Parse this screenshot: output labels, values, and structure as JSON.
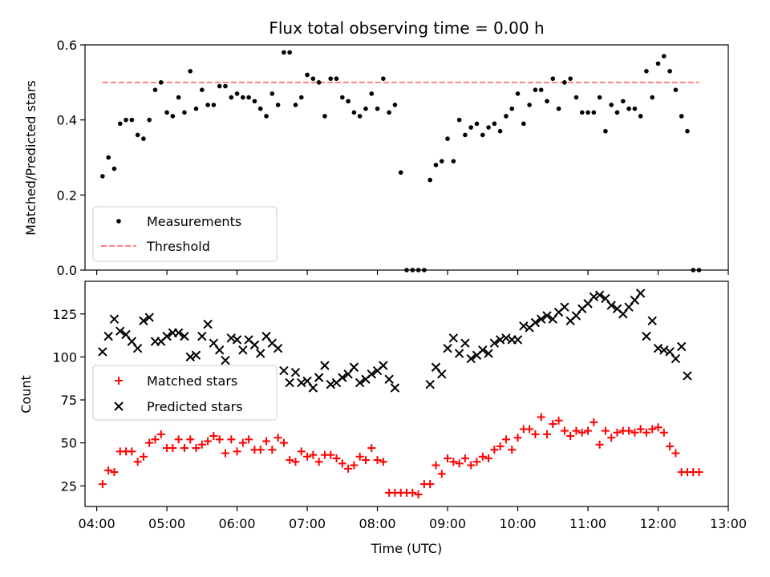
{
  "chart_data": [
    {
      "panel": "top",
      "type": "scatter",
      "title": "Flux total observing time = 0.00 h",
      "ylabel": "Matched/Predicted stars",
      "ylim": [
        0,
        0.6
      ],
      "yticks": [
        0,
        0.2,
        0.4,
        0.6
      ],
      "ytick_labels": [
        "0.0",
        "0.2",
        "0.4",
        "0.6"
      ],
      "legend_position": "lower-left",
      "series": [
        {
          "name": "Measurements",
          "color": "#000000",
          "marker": "dot",
          "x": [
            "04:05",
            "04:10",
            "04:15",
            "04:20",
            "04:25",
            "04:30",
            "04:35",
            "04:40",
            "04:45",
            "04:50",
            "04:55",
            "05:00",
            "05:05",
            "05:10",
            "05:15",
            "05:20",
            "05:25",
            "05:30",
            "05:35",
            "05:40",
            "05:45",
            "05:50",
            "05:55",
            "06:00",
            "06:05",
            "06:10",
            "06:15",
            "06:20",
            "06:25",
            "06:30",
            "06:35",
            "06:40",
            "06:45",
            "06:50",
            "06:55",
            "07:00",
            "07:05",
            "07:10",
            "07:15",
            "07:20",
            "07:25",
            "07:30",
            "07:35",
            "07:40",
            "07:45",
            "07:50",
            "07:55",
            "08:00",
            "08:05",
            "08:10",
            "08:15",
            "08:20",
            "08:25",
            "08:30",
            "08:35",
            "08:40",
            "08:45",
            "08:50",
            "08:55",
            "09:00",
            "09:05",
            "09:10",
            "09:15",
            "09:20",
            "09:25",
            "09:30",
            "09:35",
            "09:40",
            "09:45",
            "09:50",
            "09:55",
            "10:00",
            "10:05",
            "10:10",
            "10:15",
            "10:20",
            "10:25",
            "10:30",
            "10:35",
            "10:40",
            "10:45",
            "10:50",
            "10:55",
            "11:00",
            "11:05",
            "11:10",
            "11:15",
            "11:20",
            "11:25",
            "11:30",
            "11:35",
            "11:40",
            "11:45",
            "11:50",
            "11:55",
            "12:00",
            "12:05",
            "12:10",
            "12:15",
            "12:20",
            "12:25",
            "12:30",
            "12:35"
          ],
          "y": [
            0.25,
            0.3,
            0.27,
            0.39,
            0.4,
            0.4,
            0.36,
            0.35,
            0.4,
            0.48,
            0.5,
            0.42,
            0.41,
            0.46,
            0.42,
            0.53,
            0.43,
            0.48,
            0.44,
            0.44,
            0.49,
            0.49,
            0.46,
            0.47,
            0.46,
            0.46,
            0.45,
            0.43,
            0.41,
            0.47,
            0.44,
            0.58,
            0.58,
            0.44,
            0.46,
            0.52,
            0.51,
            0.5,
            0.41,
            0.51,
            0.51,
            0.46,
            0.45,
            0.42,
            0.41,
            0.43,
            0.47,
            0.43,
            0.51,
            0.42,
            0.44,
            0.26,
            0,
            0,
            0,
            0,
            0.24,
            0.28,
            0.29,
            0.35,
            0.29,
            0.4,
            0.36,
            0.38,
            0.39,
            0.36,
            0.38,
            0.39,
            0.37,
            0.41,
            0.43,
            0.47,
            0.39,
            0.44,
            0.48,
            0.48,
            0.45,
            0.51,
            0.43,
            0.5,
            0.51,
            0.46,
            0.42,
            0.42,
            0.42,
            0.46,
            0.37,
            0.44,
            0.42,
            0.45,
            0.43,
            0.43,
            0.41,
            0.53,
            0.46,
            0.55,
            0.57,
            0.53,
            0.48,
            0.41,
            0.37,
            0,
            0
          ]
        },
        {
          "name": "Threshold",
          "color": "#ff7f7f",
          "style": "dashed",
          "x": [
            "04:05",
            "12:35"
          ],
          "y": [
            0.5,
            0.5
          ]
        }
      ]
    },
    {
      "panel": "bottom",
      "type": "scatter",
      "ylabel": "Count",
      "xlabel": "Time (UTC)",
      "ylim": [
        13,
        144
      ],
      "yticks": [
        25,
        50,
        75,
        100,
        125
      ],
      "ytick_labels": [
        "25",
        "50",
        "75",
        "100",
        "125"
      ],
      "xlim": [
        "03:50",
        "13:00"
      ],
      "xticks": [
        "04:00",
        "05:00",
        "06:00",
        "07:00",
        "08:00",
        "09:00",
        "10:00",
        "11:00",
        "12:00",
        "13:00"
      ],
      "legend_position": "center-left",
      "series": [
        {
          "name": "Matched stars",
          "color": "#ff0000",
          "marker": "plus",
          "x": [
            "04:05",
            "04:10",
            "04:15",
            "04:20",
            "04:25",
            "04:30",
            "04:35",
            "04:40",
            "04:45",
            "04:50",
            "04:55",
            "05:00",
            "05:05",
            "05:10",
            "05:15",
            "05:20",
            "05:25",
            "05:30",
            "05:35",
            "05:40",
            "05:45",
            "05:50",
            "05:55",
            "06:00",
            "06:05",
            "06:10",
            "06:15",
            "06:20",
            "06:25",
            "06:30",
            "06:35",
            "06:40",
            "06:45",
            "06:50",
            "06:55",
            "07:00",
            "07:05",
            "07:10",
            "07:15",
            "07:20",
            "07:25",
            "07:30",
            "07:35",
            "07:40",
            "07:45",
            "07:50",
            "07:55",
            "08:00",
            "08:05",
            "08:10",
            "08:15",
            "08:20",
            "08:25",
            "08:30",
            "08:35",
            "08:40",
            "08:45",
            "08:50",
            "08:55",
            "09:00",
            "09:05",
            "09:10",
            "09:15",
            "09:20",
            "09:25",
            "09:30",
            "09:35",
            "09:40",
            "09:45",
            "09:50",
            "09:55",
            "10:00",
            "10:05",
            "10:10",
            "10:15",
            "10:20",
            "10:25",
            "10:30",
            "10:35",
            "10:40",
            "10:45",
            "10:50",
            "10:55",
            "11:00",
            "11:05",
            "11:10",
            "11:15",
            "11:20",
            "11:25",
            "11:30",
            "11:35",
            "11:40",
            "11:45",
            "11:50",
            "11:55",
            "12:00",
            "12:05",
            "12:10",
            "12:15",
            "12:20",
            "12:25",
            "12:30",
            "12:35"
          ],
          "y": [
            26,
            34,
            33,
            45,
            45,
            45,
            39,
            42,
            50,
            52,
            55,
            47,
            47,
            52,
            47,
            52,
            47,
            49,
            51,
            54,
            52,
            44,
            52,
            45,
            50,
            52,
            46,
            46,
            51,
            46,
            53,
            50,
            40,
            39,
            45,
            42,
            43,
            39,
            43,
            43,
            41,
            38,
            35,
            37,
            42,
            40,
            47,
            40,
            39,
            21,
            21,
            21,
            21,
            21,
            20,
            26,
            26,
            37,
            32,
            41,
            39,
            38,
            41,
            37,
            39,
            42,
            41,
            46,
            48,
            52,
            46,
            53,
            58,
            58,
            55,
            65,
            55,
            61,
            63,
            57,
            54,
            57,
            56,
            57,
            62,
            49,
            57,
            53,
            56,
            57,
            57,
            56,
            58,
            56,
            58,
            59,
            56,
            48,
            44,
            33,
            33,
            33,
            33
          ]
        },
        {
          "name": "Predicted stars",
          "color": "#000000",
          "marker": "x",
          "x": [
            "04:05",
            "04:10",
            "04:15",
            "04:20",
            "04:25",
            "04:30",
            "04:35",
            "04:40",
            "04:45",
            "04:50",
            "04:55",
            "05:00",
            "05:05",
            "05:10",
            "05:15",
            "05:20",
            "05:25",
            "05:30",
            "05:35",
            "05:40",
            "05:45",
            "05:50",
            "05:55",
            "06:00",
            "06:05",
            "06:10",
            "06:15",
            "06:20",
            "06:25",
            "06:30",
            "06:35",
            "06:40",
            "06:45",
            "06:50",
            "06:55",
            "07:00",
            "07:05",
            "07:10",
            "07:15",
            "07:20",
            "07:25",
            "07:30",
            "07:35",
            "07:40",
            "07:45",
            "07:50",
            "07:55",
            "08:00",
            "08:05",
            "08:10",
            "08:15",
            "08:45",
            "08:50",
            "08:55",
            "09:00",
            "09:05",
            "09:10",
            "09:15",
            "09:20",
            "09:25",
            "09:30",
            "09:35",
            "09:40",
            "09:45",
            "09:50",
            "09:55",
            "10:00",
            "10:05",
            "10:10",
            "10:15",
            "10:20",
            "10:25",
            "10:30",
            "10:35",
            "10:40",
            "10:45",
            "10:50",
            "10:55",
            "11:00",
            "11:05",
            "11:10",
            "11:15",
            "11:20",
            "11:25",
            "11:30",
            "11:35",
            "11:40",
            "11:45",
            "11:50",
            "11:55",
            "12:00",
            "12:05",
            "12:10",
            "12:15",
            "12:20",
            "12:25"
          ],
          "y": [
            103,
            112,
            122,
            115,
            113,
            109,
            105,
            121,
            123,
            109,
            109,
            112,
            114,
            114,
            112,
            100,
            101,
            112,
            119,
            108,
            104,
            98,
            111,
            110,
            104,
            110,
            107,
            102,
            112,
            108,
            105,
            92,
            85,
            91,
            85,
            86,
            82,
            88,
            95,
            84,
            85,
            88,
            90,
            94,
            85,
            87,
            90,
            92,
            95,
            87,
            82,
            84,
            94,
            90,
            105,
            111,
            102,
            108,
            99,
            101,
            104,
            102,
            108,
            110,
            111,
            110,
            110,
            118,
            117,
            120,
            122,
            124,
            122,
            126,
            129,
            121,
            124,
            128,
            131,
            135,
            136,
            134,
            130,
            128,
            125,
            129,
            133,
            137,
            112,
            121,
            105,
            104,
            103,
            99,
            106,
            89
          ]
        }
      ]
    }
  ],
  "legends": {
    "top": [
      "Measurements",
      "Threshold"
    ],
    "bottom": [
      "Matched stars",
      "Predicted stars"
    ]
  }
}
